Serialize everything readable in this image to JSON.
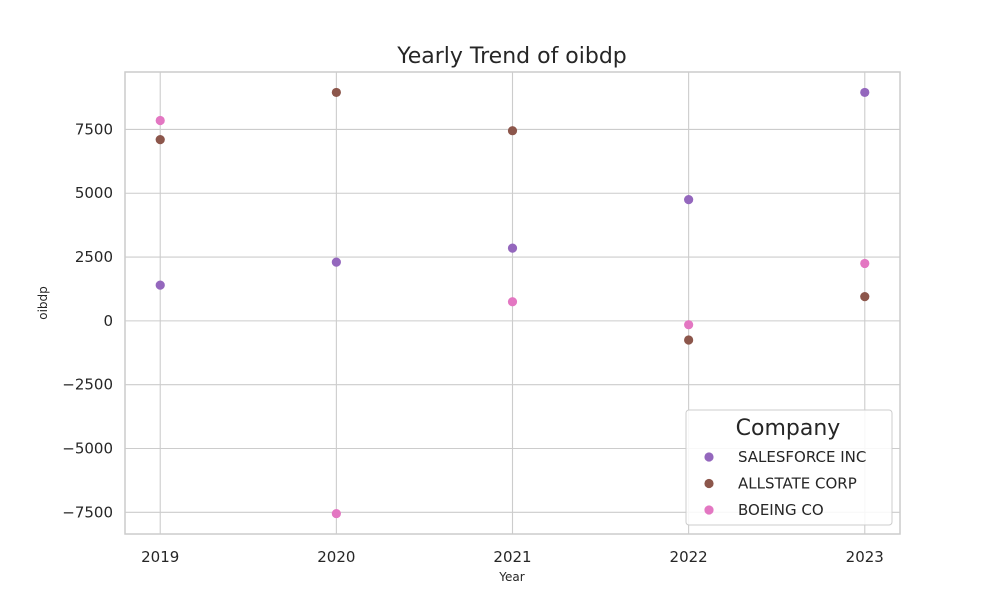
{
  "chart_data": {
    "type": "scatter",
    "title": "Yearly Trend of oibdp",
    "xlabel": "Year",
    "ylabel": "oibdp",
    "x": [
      2019,
      2020,
      2021,
      2022,
      2023
    ],
    "x_ticks": [
      "2019",
      "2020",
      "2021",
      "2022",
      "2023"
    ],
    "y_ticks": [
      -7500,
      -5000,
      -2500,
      0,
      2500,
      5000,
      7500
    ],
    "y_tick_labels": [
      "−7500",
      "−5000",
      "−2500",
      "0",
      "2500",
      "5000",
      "7500"
    ],
    "xlim": [
      2018.8,
      2023.2
    ],
    "ylim": [
      -8350,
      9750
    ],
    "grid": true,
    "legend": {
      "title": "Company",
      "position": "lower-right"
    },
    "series": [
      {
        "name": "SALESFORCE INC",
        "color": "#9467bd",
        "values": [
          1400,
          2300,
          2850,
          4750,
          8950
        ]
      },
      {
        "name": "ALLSTATE CORP",
        "color": "#8c564b",
        "values": [
          7100,
          8950,
          7450,
          -750,
          950
        ]
      },
      {
        "name": "BOEING CO",
        "color": "#e377c2",
        "values": [
          7850,
          -7550,
          750,
          -150,
          2250
        ]
      }
    ]
  }
}
